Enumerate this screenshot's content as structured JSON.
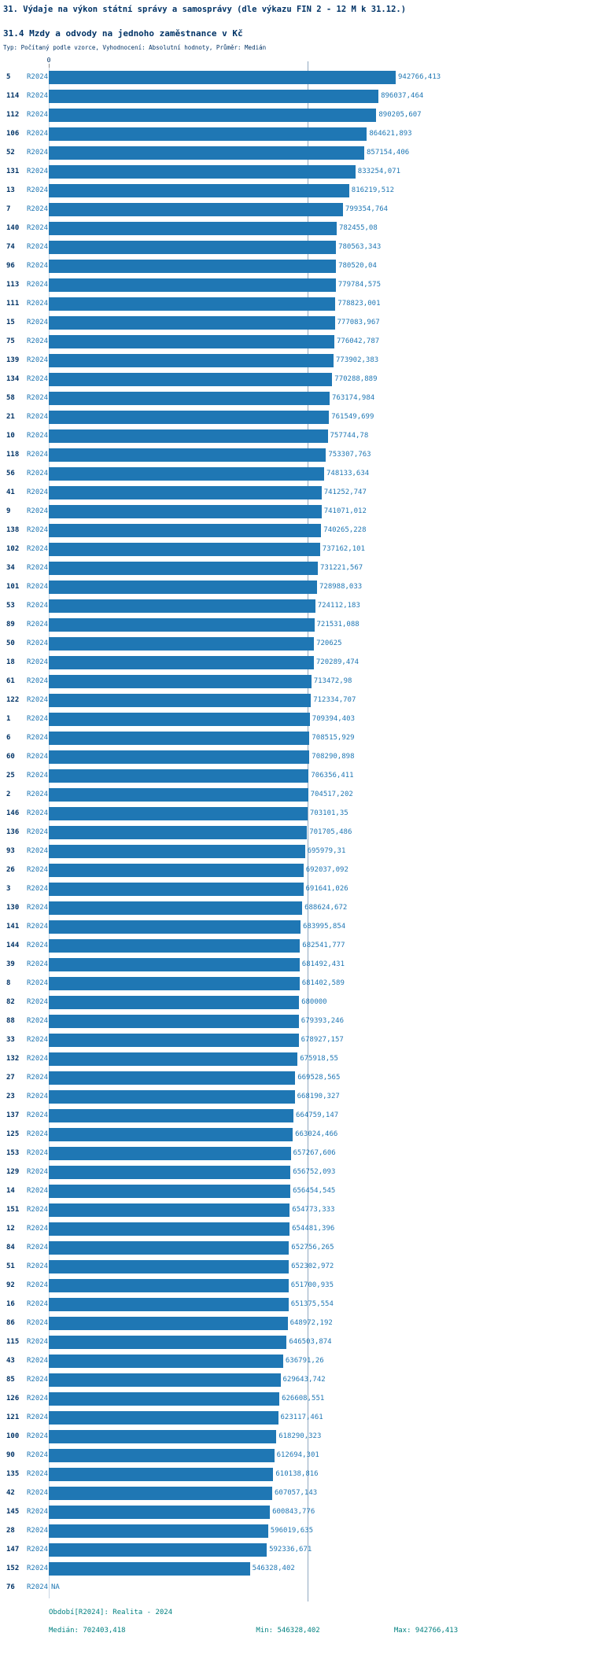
{
  "header": {
    "title": "31. Výdaje na výkon státní správy a samosprávy (dle výkazu FIN 2 - 12 M k 31.12.)",
    "subtitle": "31.4 Mzdy a odvody na jednoho zaměstnance v Kč",
    "type_line": "Typ: Počítaný podle vzorce, Vyhodnocení: Absolutní hodnoty, Průměr: Medián"
  },
  "axis": {
    "zero_label": "0"
  },
  "chart_data": {
    "type": "bar",
    "orientation": "horizontal",
    "title": "31.4 Mzdy a odvody na jednoho zaměstnance v Kč",
    "xlabel": "",
    "ylabel": "",
    "grid": false,
    "legend_position": "none",
    "series_label": "R2024",
    "xlim": [
      0,
      942766.413
    ],
    "median": 702403.418,
    "min": 546328.402,
    "max": 942766.413,
    "categories": [
      "5",
      "114",
      "112",
      "106",
      "52",
      "131",
      "13",
      "7",
      "140",
      "74",
      "96",
      "113",
      "111",
      "15",
      "75",
      "139",
      "134",
      "58",
      "21",
      "10",
      "118",
      "56",
      "41",
      "9",
      "138",
      "102",
      "34",
      "101",
      "53",
      "89",
      "50",
      "18",
      "61",
      "122",
      "1",
      "6",
      "60",
      "25",
      "2",
      "146",
      "136",
      "93",
      "26",
      "3",
      "130",
      "141",
      "144",
      "39",
      "8",
      "82",
      "88",
      "33",
      "132",
      "27",
      "23",
      "137",
      "125",
      "153",
      "129",
      "14",
      "151",
      "12",
      "84",
      "51",
      "92",
      "16",
      "86",
      "115",
      "43",
      "85",
      "126",
      "121",
      "100",
      "90",
      "135",
      "42",
      "145",
      "28",
      "147",
      "152",
      "76"
    ],
    "values": [
      942766.413,
      896037.464,
      890205.607,
      864621.893,
      857154.406,
      833254.071,
      816219.512,
      799354.764,
      782455.08,
      780563.343,
      780520.04,
      779784.575,
      778823.001,
      777083.967,
      776042.787,
      773902.383,
      770288.889,
      763174.984,
      761549.699,
      757744.78,
      753307.763,
      748133.634,
      741252.747,
      741071.012,
      740265.228,
      737162.101,
      731221.567,
      728988.033,
      724112.183,
      721531.088,
      720625,
      720289.474,
      713472.98,
      712334.707,
      709394.403,
      708515.929,
      708290.898,
      706356.411,
      704517.202,
      703101.35,
      701705.486,
      695979.31,
      692037.092,
      691641.026,
      688624.672,
      683995.854,
      682541.777,
      681492.431,
      681402.589,
      680000,
      679393.246,
      678927.157,
      675918.55,
      669528.565,
      668190.327,
      664759.147,
      663024.466,
      657267.606,
      656752.093,
      656454.545,
      654773.333,
      654481.396,
      652756.265,
      652302.972,
      651700.935,
      651375.554,
      648972.192,
      646503.874,
      636791.26,
      629643.742,
      626608.551,
      623117.461,
      618290.323,
      612694.301,
      610138.816,
      607057.143,
      600843.776,
      596019.635,
      592336.671,
      546328.402,
      null
    ],
    "value_labels": [
      "942766,413",
      "896037,464",
      "890205,607",
      "864621,893",
      "857154,406",
      "833254,071",
      "816219,512",
      "799354,764",
      "782455,08",
      "780563,343",
      "780520,04",
      "779784,575",
      "778823,001",
      "777083,967",
      "776042,787",
      "773902,383",
      "770288,889",
      "763174,984",
      "761549,699",
      "757744,78",
      "753307,763",
      "748133,634",
      "741252,747",
      "741071,012",
      "740265,228",
      "737162,101",
      "731221,567",
      "728988,033",
      "724112,183",
      "721531,088",
      "720625",
      "720289,474",
      "713472,98",
      "712334,707",
      "709394,403",
      "708515,929",
      "708290,898",
      "706356,411",
      "704517,202",
      "703101,35",
      "701705,486",
      "695979,31",
      "692037,092",
      "691641,026",
      "688624,672",
      "683995,854",
      "682541,777",
      "681492,431",
      "681402,589",
      "680000",
      "679393,246",
      "678927,157",
      "675918,55",
      "669528,565",
      "668190,327",
      "664759,147",
      "663024,466",
      "657267,606",
      "656752,093",
      "656454,545",
      "654773,333",
      "654481,396",
      "652756,265",
      "652302,972",
      "651700,935",
      "651375,554",
      "648972,192",
      "646503,874",
      "636791,26",
      "629643,742",
      "626608,551",
      "623117,461",
      "618290,323",
      "612694,301",
      "610138,816",
      "607057,143",
      "600843,776",
      "596019,635",
      "592336,671",
      "546328,402",
      "NA"
    ]
  },
  "footer": {
    "period_line": "Období[R2024]: Realita - 2024",
    "median_label": "Medián: 702403,418",
    "min_label": "Min: 546328,402",
    "max_label": "Max: 942766,413"
  },
  "colors": {
    "bar": "#1f77b4",
    "value_text": "#1f77b4",
    "heading_text": "#003366",
    "footer_text": "#008080",
    "median_line": "#90a8c0"
  }
}
